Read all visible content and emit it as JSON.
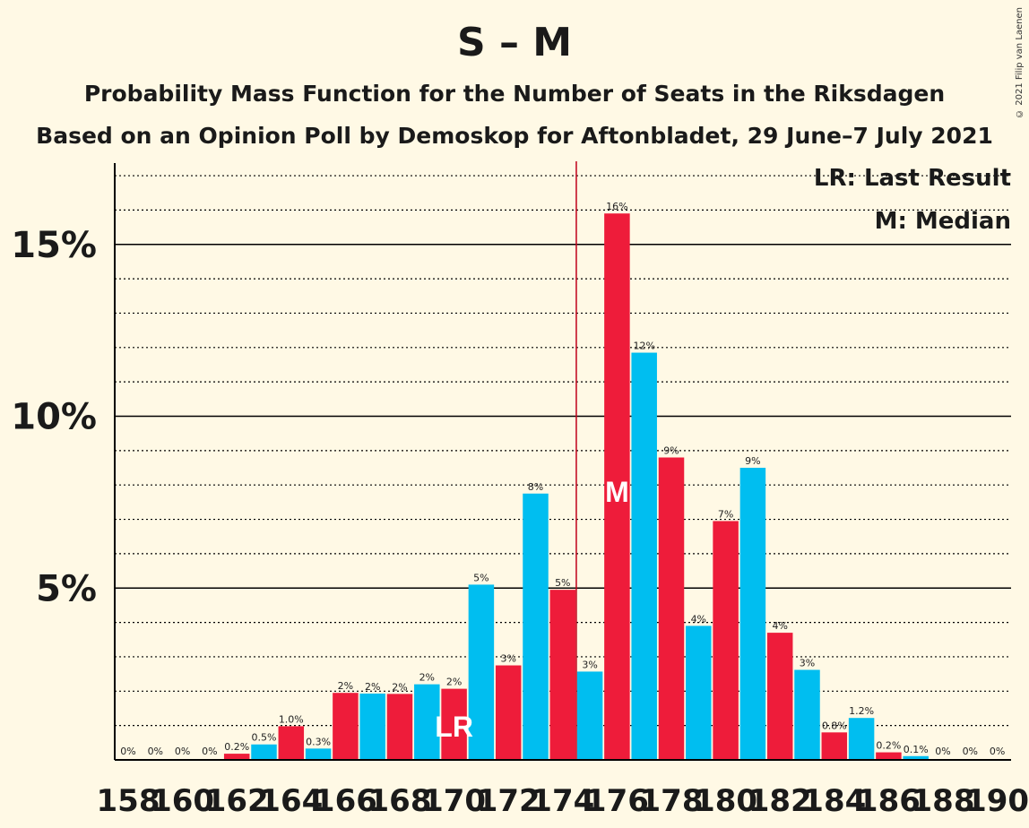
{
  "header": {
    "title": "S – M",
    "subtitle": "Probability Mass Function for the Number of Seats in the Riksdagen",
    "subtitle2": "Based on an Opinion Poll by Demoskop for Aftonbladet, 29 June–7 July 2021",
    "copyright": "© 2021 Filip van Laenen"
  },
  "legend": {
    "last_result": "LR: Last Result",
    "median": "M: Median"
  },
  "colors": {
    "red": "#EE1C3A",
    "blue": "#00BEF0",
    "median_line": "#C0001A",
    "background": "#FFF9E5"
  },
  "chart_data": {
    "type": "bar",
    "x": [
      158,
      159,
      160,
      161,
      162,
      163,
      164,
      165,
      166,
      167,
      168,
      169,
      170,
      171,
      172,
      173,
      174,
      175,
      176,
      177,
      178,
      179,
      180,
      181,
      182,
      183,
      184,
      185,
      186,
      187,
      188,
      189,
      190
    ],
    "values": [
      0,
      0,
      0,
      0,
      0.2,
      0.5,
      1.0,
      0.3,
      2,
      2,
      2,
      2,
      2,
      5,
      3,
      8,
      5,
      3,
      16,
      12,
      9,
      4,
      7,
      9,
      4,
      3,
      0.8,
      1.2,
      0.2,
      0.1,
      0,
      0,
      0
    ],
    "heights_pct": [
      0,
      0,
      0,
      0,
      0.18,
      0.45,
      0.98,
      0.33,
      1.95,
      1.93,
      1.92,
      2.2,
      2.07,
      5.1,
      2.75,
      7.75,
      4.95,
      2.57,
      15.9,
      11.85,
      8.8,
      3.9,
      6.95,
      8.5,
      3.7,
      2.62,
      0.8,
      1.22,
      0.22,
      0.11,
      0,
      0,
      0
    ],
    "labels": [
      "0%",
      "0%",
      "0%",
      "0%",
      "0.2%",
      "0.5%",
      "1.0%",
      "0.3%",
      "2%",
      "2%",
      "2%",
      "2%",
      "2%",
      "5%",
      "3%",
      "8%",
      "5%",
      "3%",
      "16%",
      "12%",
      "9%",
      "4%",
      "7%",
      "9%",
      "4%",
      "3%",
      "0.8%",
      "1.2%",
      "0.2%",
      "0.1%",
      "0%",
      "0%",
      "0%"
    ],
    "bar_colors": [
      "blue",
      "red",
      "blue",
      "red",
      "red",
      "blue",
      "red",
      "blue",
      "red",
      "blue",
      "red",
      "blue",
      "red",
      "blue",
      "red",
      "blue",
      "red",
      "blue",
      "red",
      "blue",
      "red",
      "blue",
      "red",
      "blue",
      "red",
      "blue",
      "red",
      "blue",
      "red",
      "blue",
      "red",
      "blue",
      "red"
    ],
    "x_tick_labels": [
      "158",
      "160",
      "162",
      "164",
      "166",
      "168",
      "170",
      "172",
      "174",
      "176",
      "178",
      "180",
      "182",
      "184",
      "186",
      "188",
      "190"
    ],
    "y_ticks": [
      5,
      10,
      15
    ],
    "y_tick_labels": [
      "5%",
      "10%",
      "15%"
    ],
    "ylim": [
      0,
      17.2
    ],
    "last_result": {
      "seat": 170,
      "label": "LR"
    },
    "median": {
      "seat": 176,
      "label": "M"
    },
    "majority_line_seat": 175,
    "grid": true
  }
}
